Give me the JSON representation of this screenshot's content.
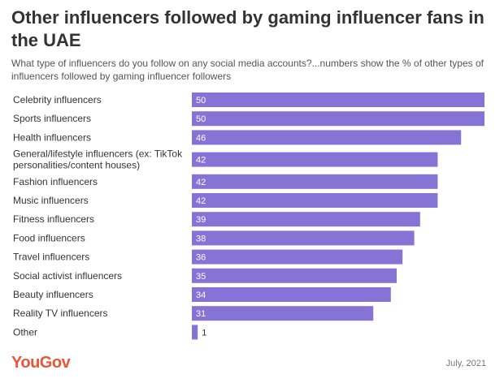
{
  "colors": {
    "bar": "#8573d6",
    "title": "#333333",
    "brand": "#e8553a"
  },
  "title": "Other influencers followed by gaming influencer fans in the UAE",
  "subtitle": "What type of influencers do you follow on any social media accounts?...numbers show the % of other types of influencers followed by gaming influencer followers",
  "brand": "YouGov",
  "date": "July, 2021",
  "chart_data": {
    "type": "bar",
    "orientation": "horizontal",
    "categories": [
      [
        "Celebrity influencers"
      ],
      [
        "Sports influencers"
      ],
      [
        "Health influencers"
      ],
      [
        "General/lifestyle influencers (ex: TikTok",
        "personalities/content houses)"
      ],
      [
        "Fashion influencers"
      ],
      [
        "Music influencers"
      ],
      [
        "Fitness influencers"
      ],
      [
        "Food influencers"
      ],
      [
        "Travel influencers"
      ],
      [
        "Social activist influencers"
      ],
      [
        "Beauty influencers"
      ],
      [
        "Reality TV influencers"
      ],
      [
        "Other"
      ]
    ],
    "values": [
      50,
      50,
      46,
      42,
      42,
      42,
      39,
      38,
      36,
      35,
      34,
      31,
      1
    ],
    "xlim": [
      0,
      50
    ],
    "grid": false
  }
}
